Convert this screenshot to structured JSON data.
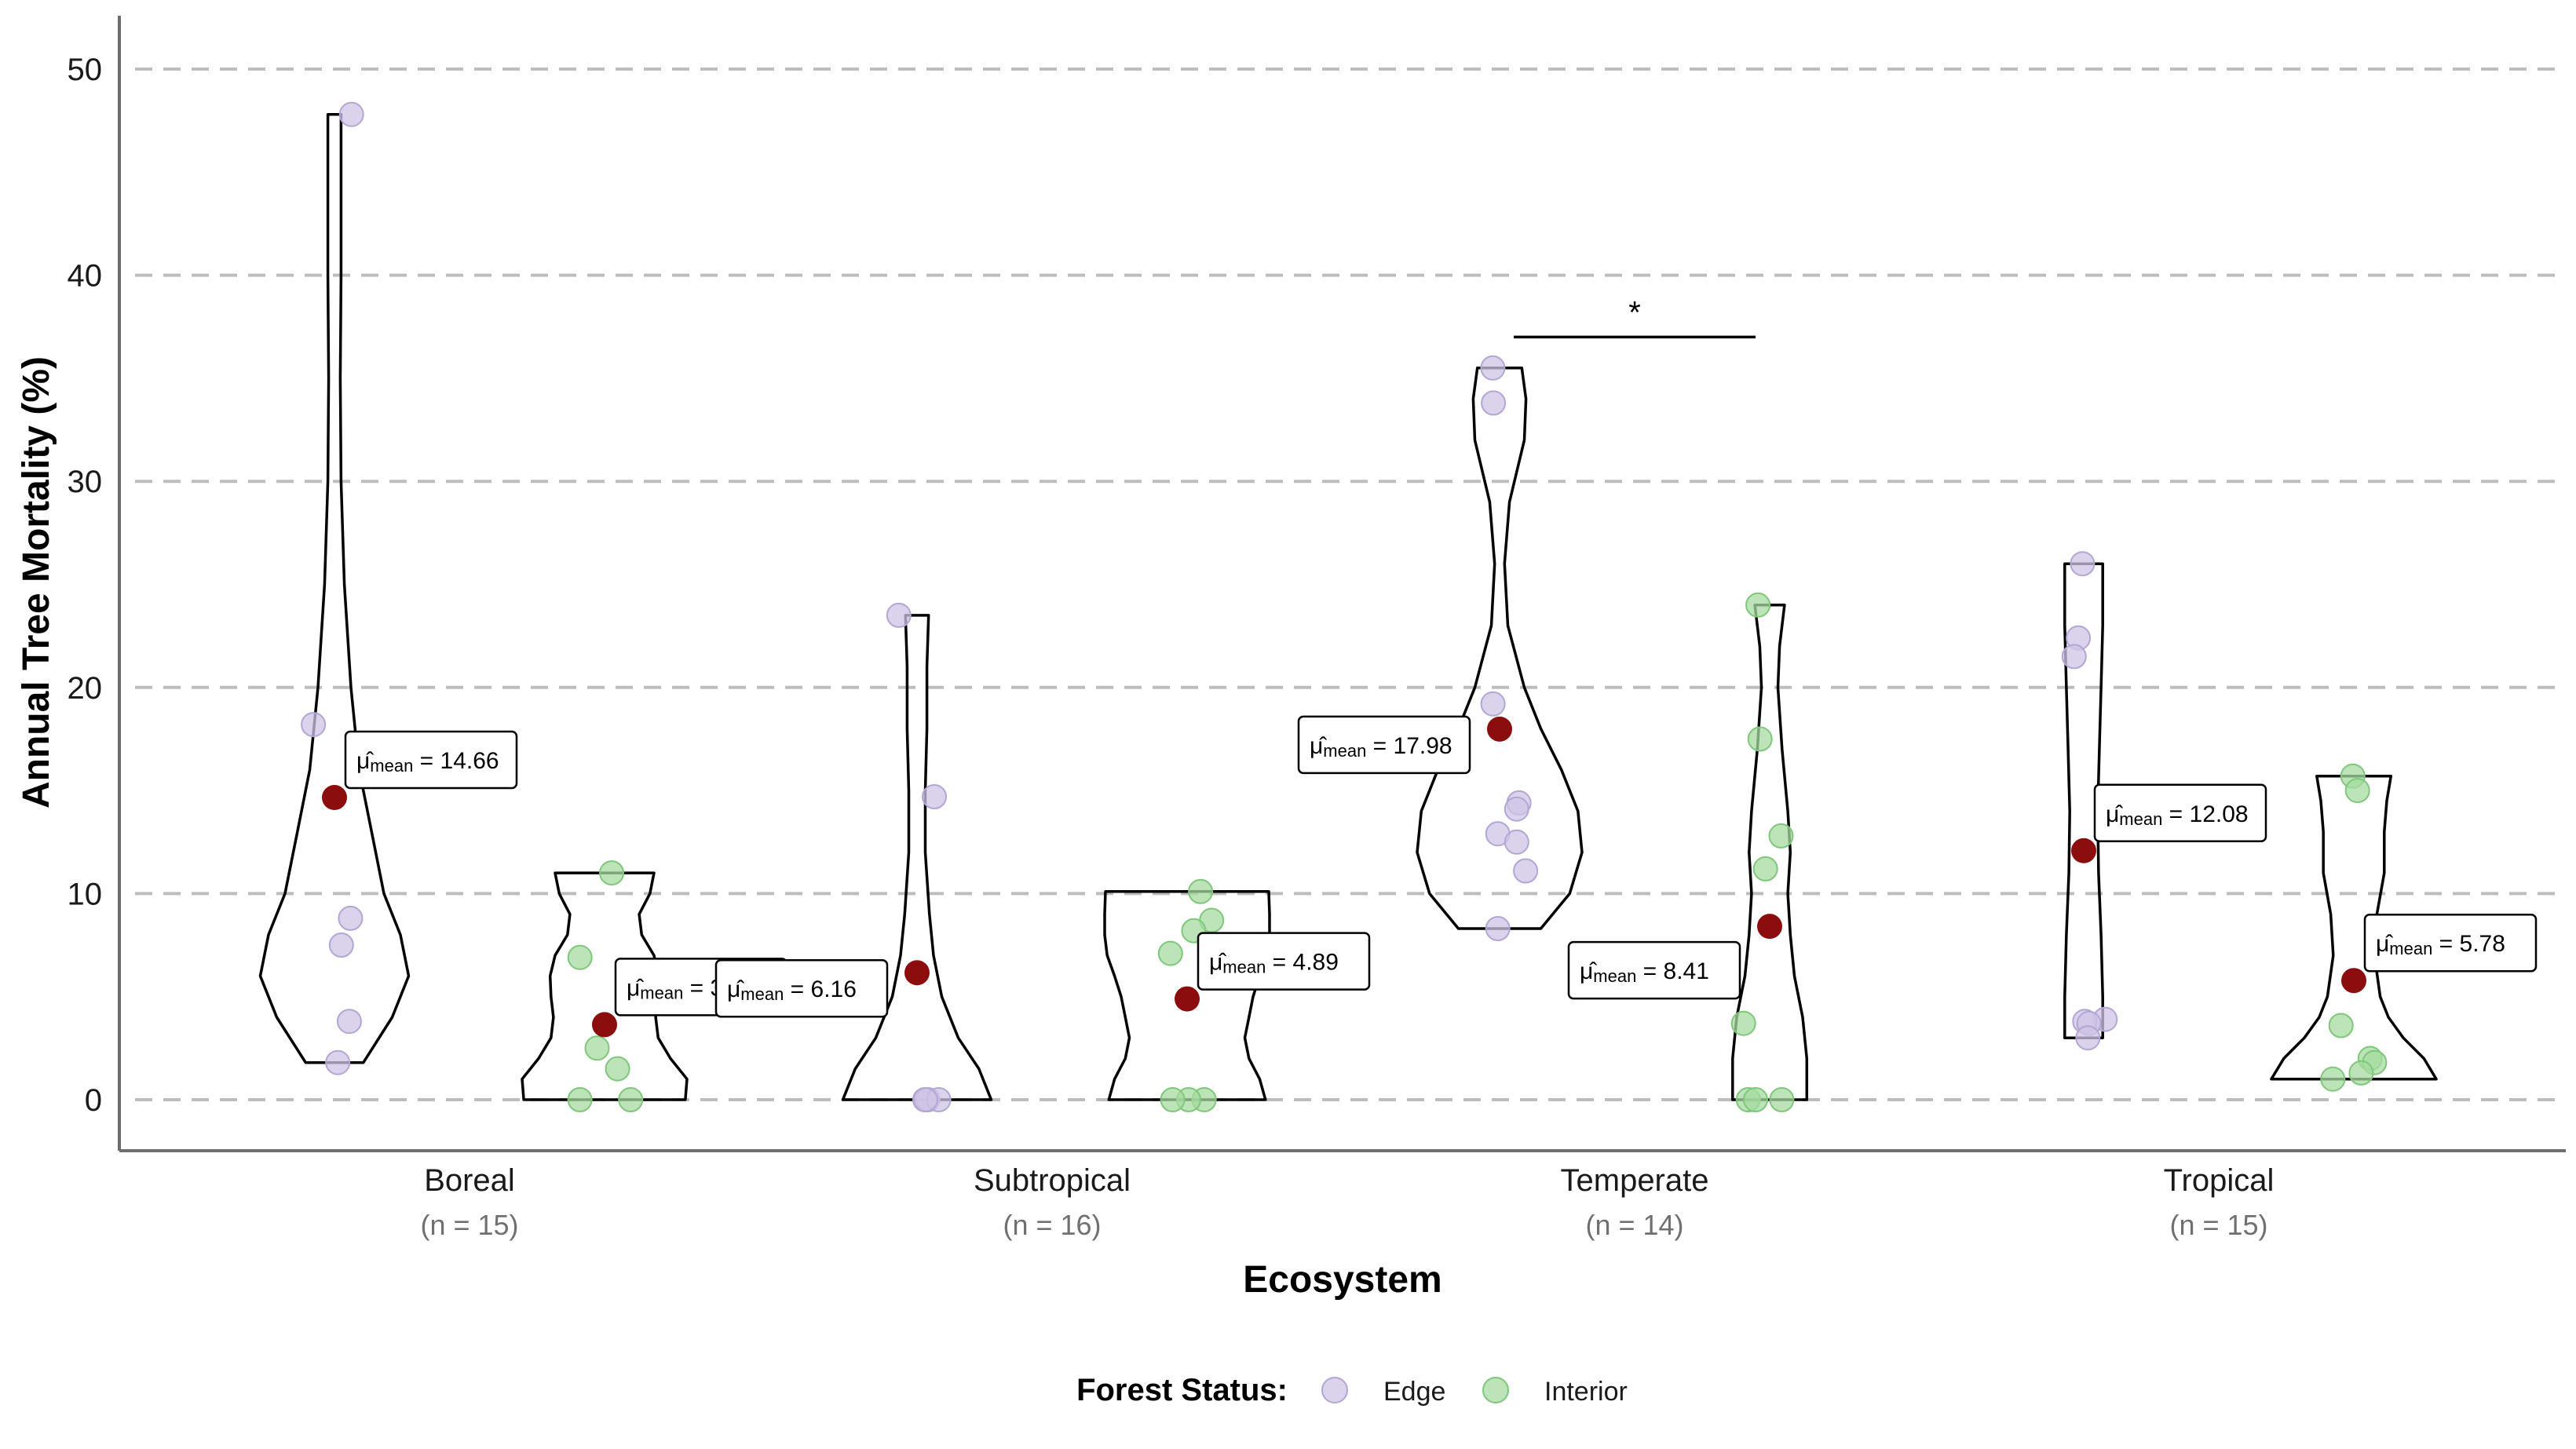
{
  "chart_data": {
    "type": "violin",
    "title": "",
    "xlabel": "Ecosystem",
    "ylabel": "Annual Tree Mortality (%)",
    "ylim": [
      -2.5,
      52
    ],
    "yticks": [
      0,
      10,
      20,
      30,
      40,
      50
    ],
    "grid": "horizontal-dashed",
    "legend_position": "bottom",
    "legend": {
      "title": "Forest Status:",
      "items": [
        {
          "label": "Edge",
          "color": "#cfc4e6",
          "stroke": "#b3a6d4"
        },
        {
          "label": "Interior",
          "color": "#a6dba0",
          "stroke": "#7fc77a"
        }
      ]
    },
    "colors": {
      "mean": "#8b0d0d",
      "violin": "#000000",
      "grid": "#bdbdbd"
    },
    "categories": [
      {
        "name": "Boreal",
        "n_label": "(n = 15)"
      },
      {
        "name": "Subtropical",
        "n_label": "(n = 16)"
      },
      {
        "name": "Temperate",
        "n_label": "(n = 14)"
      },
      {
        "name": "Tropical",
        "n_label": "(n = 15)"
      }
    ],
    "groups": [
      {
        "category": "Boreal",
        "status": "Edge",
        "min": 1.8,
        "max": 47.8,
        "mean": 14.66,
        "mean_label": "14.66",
        "points": [
          47.8,
          18.2,
          8.8,
          7.5,
          3.8,
          1.8
        ],
        "density": [
          [
            1.8,
            0.35
          ],
          [
            4,
            0.7
          ],
          [
            6,
            0.9
          ],
          [
            8,
            0.8
          ],
          [
            10,
            0.6
          ],
          [
            13,
            0.45
          ],
          [
            16,
            0.3
          ],
          [
            20,
            0.2
          ],
          [
            25,
            0.12
          ],
          [
            30,
            0.08
          ],
          [
            35,
            0.07
          ],
          [
            40,
            0.08
          ],
          [
            44,
            0.08
          ],
          [
            47.8,
            0.08
          ]
        ]
      },
      {
        "category": "Boreal",
        "status": "Interior",
        "min": 0,
        "max": 11.0,
        "mean": 3.64,
        "mean_label": "3.64",
        "points": [
          11.0,
          6.9,
          2.5,
          1.5,
          0,
          0
        ],
        "density": [
          [
            0,
            0.98
          ],
          [
            1,
            1.0
          ],
          [
            2,
            0.8
          ],
          [
            3,
            0.65
          ],
          [
            4,
            0.62
          ],
          [
            5,
            0.65
          ],
          [
            6,
            0.66
          ],
          [
            7,
            0.6
          ],
          [
            8,
            0.45
          ],
          [
            9,
            0.42
          ],
          [
            10,
            0.55
          ],
          [
            11,
            0.6
          ]
        ]
      },
      {
        "category": "Subtropical",
        "status": "Edge",
        "min": 0,
        "max": 23.5,
        "mean": 6.16,
        "mean_label": "6.16",
        "points": [
          23.5,
          14.7,
          0,
          0,
          0,
          0
        ],
        "density": [
          [
            0,
            0.9
          ],
          [
            1.5,
            0.75
          ],
          [
            3,
            0.5
          ],
          [
            5,
            0.3
          ],
          [
            7,
            0.2
          ],
          [
            9,
            0.15
          ],
          [
            12,
            0.1
          ],
          [
            15,
            0.1
          ],
          [
            18,
            0.12
          ],
          [
            21,
            0.12
          ],
          [
            23.5,
            0.14
          ]
        ]
      },
      {
        "category": "Subtropical",
        "status": "Interior",
        "min": 0,
        "max": 10.1,
        "mean": 4.89,
        "mean_label": "4.89",
        "points": [
          10.1,
          8.7,
          8.2,
          7.1,
          0,
          0,
          0
        ],
        "density": [
          [
            0,
            0.95
          ],
          [
            1,
            0.88
          ],
          [
            2,
            0.75
          ],
          [
            3,
            0.7
          ],
          [
            4,
            0.75
          ],
          [
            5,
            0.8
          ],
          [
            6,
            0.88
          ],
          [
            7,
            0.97
          ],
          [
            8,
            1.0
          ],
          [
            9,
            1.0
          ],
          [
            10.1,
            0.99
          ]
        ]
      },
      {
        "category": "Temperate",
        "status": "Edge",
        "min": 8.3,
        "max": 35.5,
        "mean": 17.98,
        "mean_label": "17.98",
        "points": [
          35.5,
          33.8,
          19.2,
          14.4,
          14.1,
          12.9,
          12.5,
          11.1,
          8.3
        ],
        "density": [
          [
            8.3,
            0.5
          ],
          [
            10,
            0.85
          ],
          [
            12,
            1.0
          ],
          [
            14,
            0.95
          ],
          [
            16,
            0.75
          ],
          [
            18,
            0.5
          ],
          [
            20,
            0.3
          ],
          [
            23,
            0.1
          ],
          [
            26,
            0.06
          ],
          [
            29,
            0.12
          ],
          [
            32,
            0.3
          ],
          [
            34,
            0.32
          ],
          [
            35.5,
            0.27
          ]
        ]
      },
      {
        "category": "Temperate",
        "status": "Interior",
        "min": 0,
        "max": 24.0,
        "mean": 8.41,
        "mean_label": "8.41",
        "points": [
          24.0,
          17.5,
          12.8,
          11.2,
          3.7,
          0,
          0,
          0
        ],
        "density": [
          [
            0,
            0.45
          ],
          [
            2,
            0.45
          ],
          [
            4,
            0.4
          ],
          [
            6,
            0.3
          ],
          [
            8,
            0.25
          ],
          [
            10,
            0.22
          ],
          [
            12,
            0.25
          ],
          [
            14,
            0.22
          ],
          [
            17,
            0.15
          ],
          [
            20,
            0.1
          ],
          [
            22,
            0.12
          ],
          [
            24,
            0.18
          ]
        ]
      },
      {
        "category": "Tropical",
        "status": "Edge",
        "min": 3.0,
        "max": 26.0,
        "mean": 12.08,
        "mean_label": "12.08",
        "points": [
          26.0,
          22.4,
          21.5,
          3.9,
          3.8,
          3.7,
          3.0
        ],
        "density": [
          [
            3,
            0.23
          ],
          [
            5,
            0.23
          ],
          [
            8,
            0.21
          ],
          [
            11,
            0.18
          ],
          [
            14,
            0.17
          ],
          [
            17,
            0.19
          ],
          [
            20,
            0.21
          ],
          [
            23,
            0.23
          ],
          [
            26,
            0.23
          ]
        ]
      },
      {
        "category": "Tropical",
        "status": "Interior",
        "min": 1.0,
        "max": 15.7,
        "mean": 5.78,
        "mean_label": "5.78",
        "points": [
          15.7,
          15.0,
          3.6,
          2.0,
          1.8,
          1.3,
          1.0
        ],
        "density": [
          [
            1,
            1.0
          ],
          [
            2,
            0.85
          ],
          [
            3,
            0.6
          ],
          [
            4,
            0.42
          ],
          [
            5,
            0.32
          ],
          [
            7,
            0.25
          ],
          [
            9,
            0.28
          ],
          [
            11,
            0.37
          ],
          [
            13,
            0.37
          ],
          [
            14.5,
            0.4
          ],
          [
            15.7,
            0.45
          ]
        ]
      }
    ],
    "annotations": [
      {
        "type": "significance",
        "label": "*",
        "from_group": "Temperate Edge",
        "to_group": "Temperate Interior",
        "y": 37
      }
    ]
  }
}
